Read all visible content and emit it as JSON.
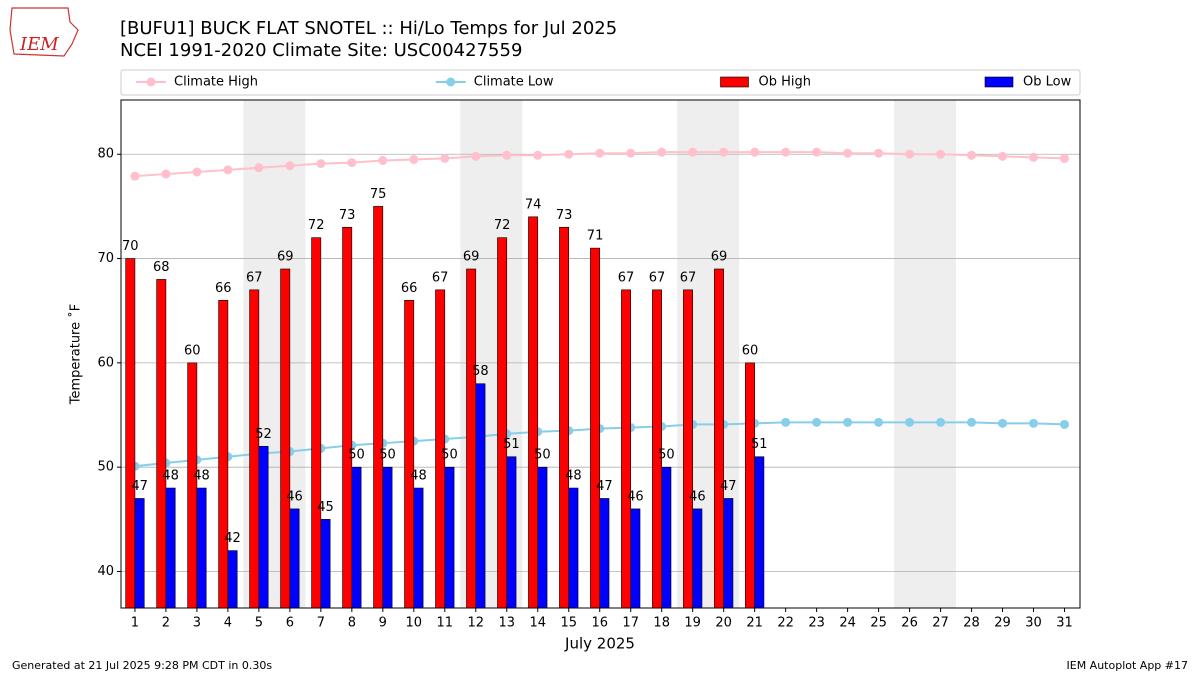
{
  "chart_data": {
    "type": "bar",
    "title": "[BUFU1] BUCK FLAT SNOTEL :: Hi/Lo Temps for Jul 2025",
    "subtitle": "NCEI 1991-2020 Climate Site: USC00427559",
    "logo": "IEM",
    "x_label": "July 2025",
    "y_label": "Temperature ˚F",
    "footer_left": "Generated at 21 Jul 2025 9:28 PM CDT in 0.30s",
    "footer_right": "IEM Autoplot App #17",
    "x": [
      1,
      2,
      3,
      4,
      5,
      6,
      7,
      8,
      9,
      10,
      11,
      12,
      13,
      14,
      15,
      16,
      17,
      18,
      19,
      20,
      21,
      22,
      23,
      24,
      25,
      26,
      27,
      28,
      29,
      30,
      31
    ],
    "xlim": [
      0.55,
      31.5
    ],
    "xticks": [
      1,
      2,
      3,
      4,
      5,
      6,
      7,
      8,
      9,
      10,
      11,
      12,
      13,
      14,
      15,
      16,
      17,
      18,
      19,
      20,
      21,
      22,
      23,
      24,
      25,
      26,
      27,
      28,
      29,
      30,
      31
    ],
    "ylim": [
      36.5,
      85.2
    ],
    "yticks": [
      40,
      50,
      60,
      70,
      80
    ],
    "grid": true,
    "legend": "top",
    "shaded_days": [
      [
        5,
        6
      ],
      [
        12,
        13
      ],
      [
        19,
        20
      ],
      [
        26,
        27
      ]
    ],
    "shade_color": "#eeeeee",
    "series": [
      {
        "name": "Climate High",
        "kind": "line",
        "color": "#ffc0cb",
        "values": [
          77.9,
          78.1,
          78.3,
          78.5,
          78.7,
          78.9,
          79.1,
          79.2,
          79.4,
          79.5,
          79.6,
          79.8,
          79.9,
          79.9,
          80.0,
          80.1,
          80.1,
          80.2,
          80.2,
          80.2,
          80.2,
          80.2,
          80.2,
          80.1,
          80.1,
          80.0,
          80.0,
          79.9,
          79.8,
          79.7,
          79.6
        ]
      },
      {
        "name": "Climate Low",
        "kind": "line",
        "color": "#87ceeb",
        "values": [
          50.1,
          50.4,
          50.7,
          51.0,
          51.3,
          51.5,
          51.8,
          52.1,
          52.3,
          52.5,
          52.7,
          52.9,
          53.2,
          53.4,
          53.5,
          53.7,
          53.8,
          53.9,
          54.1,
          54.1,
          54.2,
          54.3,
          54.3,
          54.3,
          54.3,
          54.3,
          54.3,
          54.3,
          54.2,
          54.2,
          54.1
        ]
      },
      {
        "name": "Ob High",
        "kind": "bar",
        "color": "#ff0000",
        "values": [
          70,
          68,
          60,
          66,
          67,
          69,
          72,
          73,
          75,
          66,
          67,
          69,
          72,
          74,
          73,
          71,
          67,
          67,
          67,
          69,
          60,
          null,
          null,
          null,
          null,
          null,
          null,
          null,
          null,
          null,
          null
        ]
      },
      {
        "name": "Ob Low",
        "kind": "bar",
        "color": "#0000ff",
        "values": [
          47,
          48,
          48,
          42,
          52,
          46,
          45,
          50,
          50,
          48,
          50,
          58,
          51,
          50,
          48,
          47,
          46,
          50,
          46,
          47,
          51,
          null,
          null,
          null,
          null,
          null,
          null,
          null,
          null,
          null,
          null
        ]
      }
    ]
  }
}
